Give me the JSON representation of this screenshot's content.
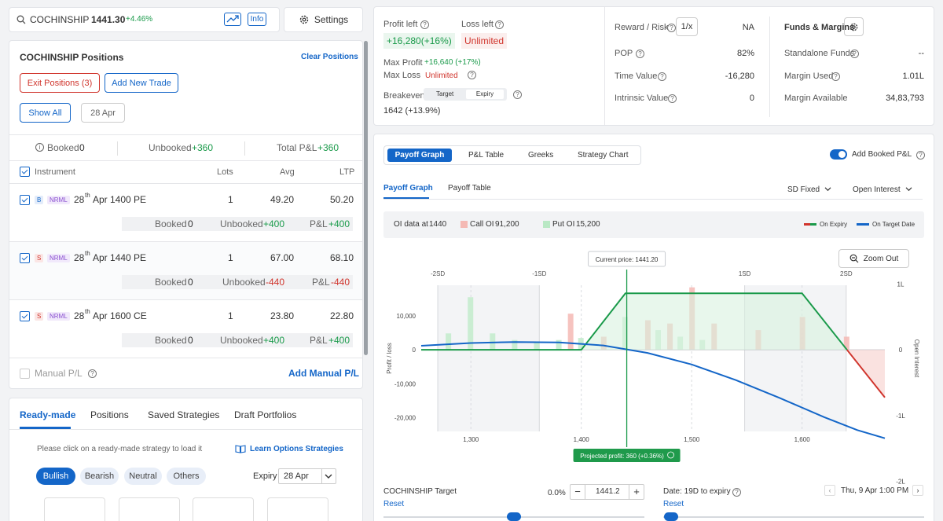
{
  "search": {
    "symbol": "COCHINSHIP",
    "price": "1441.30",
    "change": "+4.46%",
    "info": "Info"
  },
  "settings_label": "Settings",
  "positions": {
    "title": "COCHINSHIP Positions",
    "clear": "Clear Positions",
    "exit": "Exit Positions (3)",
    "add": "Add New Trade",
    "show_all": "Show All",
    "date": "28 Apr",
    "booked_label": "Booked",
    "booked_val": "0",
    "unbooked_label": "Unbooked",
    "unbooked_val": "+360",
    "total_label": "Total P&L",
    "total_val": "+360",
    "col_instrument": "Instrument",
    "col_lots": "Lots",
    "col_avg": "Avg",
    "col_ltp": "LTP",
    "rows": [
      {
        "side": "B",
        "type": "NRML",
        "day": "28",
        "sup": "th",
        "name": "Apr 1400 PE",
        "lots": "1",
        "avg": "49.20",
        "ltp": "50.20",
        "booked": "0",
        "unbooked": "+400",
        "pnl": "+400"
      },
      {
        "side": "S",
        "type": "NRML",
        "day": "28",
        "sup": "th",
        "name": "Apr 1440 PE",
        "lots": "1",
        "avg": "67.00",
        "ltp": "68.10",
        "booked": "0",
        "unbooked": "-440",
        "pnl": "-440"
      },
      {
        "side": "S",
        "type": "NRML",
        "day": "28",
        "sup": "th",
        "name": "Apr 1600 CE",
        "lots": "1",
        "avg": "23.80",
        "ltp": "22.80",
        "booked": "0",
        "unbooked": "+400",
        "pnl": "+400"
      }
    ],
    "row_booked": "Booked",
    "row_unbooked": "Unbooked",
    "row_pnl": "P&L",
    "manual": "Manual P/L",
    "add_manual": "Add Manual P/L"
  },
  "strategies": {
    "tabs": [
      "Ready-made",
      "Positions",
      "Saved Strategies",
      "Draft Portfolios"
    ],
    "hint": "Please click on a ready-made strategy to load it",
    "learn": "Learn Options Strategies",
    "chips": [
      "Bullish",
      "Bearish",
      "Neutral",
      "Others"
    ],
    "expiry_label": "Expiry",
    "expiry_val": "28 Apr"
  },
  "summary": {
    "profit_left_label": "Profit left",
    "profit_left": "+16,280(+16%)",
    "loss_left_label": "Loss left",
    "loss_left": "Unlimited",
    "max_profit_label": "Max Profit",
    "max_profit": "+16,640 (+17%)",
    "max_loss_label": "Max Loss",
    "max_loss": "Unlimited",
    "breakeven_label": "Breakeven",
    "be_target": "Target",
    "be_expiry": "Expiry",
    "breakeven": "1642 (+13.9%)",
    "rr_label": "Reward / Risk",
    "rr_btn": "1/x",
    "rr_val": "NA",
    "pop_label": "POP",
    "pop_val": "82%",
    "tv_label": "Time Value",
    "tv_val": "-16,280",
    "iv_label": "Intrinsic Value",
    "iv_val": "0",
    "funds_title": "Funds & Margins",
    "standalone_label": "Standalone Funds",
    "standalone_val": "--",
    "margin_used_label": "Margin Used",
    "margin_used_val": "1.01L",
    "margin_avail_label": "Margin Available",
    "margin_avail_val": "34,83,793"
  },
  "graph": {
    "tabs": [
      "Payoff Graph",
      "P&L Table",
      "Greeks",
      "Strategy Chart"
    ],
    "add_booked": "Add Booked P&L",
    "subtabs": [
      "Payoff Graph",
      "Payoff Table"
    ],
    "sd": "SD Fixed",
    "oi": "Open Interest",
    "oi_label": "OI data at",
    "oi_strike": "1440",
    "call_oi_label": "Call OI",
    "call_oi": "91,200",
    "put_oi_label": "Put OI",
    "put_oi": "15,200",
    "legend_expiry": "On Expiry",
    "legend_target": "On Target Date",
    "zoom": "Zoom Out",
    "current_price": "Current price: 1441.20",
    "projected": "Projected profit: 360 (+0.36%)",
    "target_label": "COCHINSHIP Target",
    "target_pct": "0.0%",
    "target_val": "1441.2",
    "reset": "Reset",
    "date_label": "Date: 19D to expiry",
    "date_val": "Thu, 9 Apr 1:00 PM"
  },
  "chart_data": {
    "type": "line",
    "title": "Payoff Graph",
    "xlabel": "",
    "ylabel": "Profit / loss",
    "y2label": "Open Interest",
    "xlim": [
      1255,
      1675
    ],
    "ylim": [
      -24000,
      19000
    ],
    "x_ticks": [
      1300,
      1400,
      1500,
      1600
    ],
    "x_tick_labels": [
      "1,300",
      "1,400",
      "1,500",
      "1,600"
    ],
    "y_ticks": [
      10000,
      0,
      -10000,
      -20000
    ],
    "y_tick_labels": [
      "10,000",
      "0",
      "-10,000",
      "-20,000"
    ],
    "y2_ticks": [
      1,
      0,
      -1,
      -2
    ],
    "y2_tick_labels": [
      "1L",
      "0",
      "-1L",
      "-2L"
    ],
    "sd_levels": [
      {
        "label": "-2SD",
        "x": 1270
      },
      {
        "label": "-1SD",
        "x": 1362
      },
      {
        "label": "1SD",
        "x": 1548
      },
      {
        "label": "2SD",
        "x": 1640
      }
    ],
    "current_price": 1441.2,
    "series": [
      {
        "name": "On Expiry",
        "x": [
          1255,
          1400,
          1440,
          1600,
          1675
        ],
        "y": [
          0,
          0,
          16640,
          16640,
          -14000
        ]
      },
      {
        "name": "On Target Date",
        "x": [
          1255,
          1300,
          1340,
          1380,
          1420,
          1460,
          1500,
          1540,
          1580,
          1620,
          1650,
          1675
        ],
        "y": [
          1200,
          2000,
          2300,
          2200,
          1300,
          -900,
          -4300,
          -8900,
          -14200,
          -19800,
          -23600,
          -26000
        ]
      }
    ],
    "oi_bars": {
      "call": [
        {
          "strike": 1390,
          "oi": 0.55
        },
        {
          "strike": 1420,
          "oi": 0.2
        },
        {
          "strike": 1460,
          "oi": 0.45
        },
        {
          "strike": 1480,
          "oi": 0.4
        },
        {
          "strike": 1500,
          "oi": 0.95
        },
        {
          "strike": 1520,
          "oi": 0.4
        },
        {
          "strike": 1560,
          "oi": 0.3
        },
        {
          "strike": 1600,
          "oi": 0.5
        },
        {
          "strike": 1640,
          "oi": 0.2
        }
      ],
      "put": [
        {
          "strike": 1280,
          "oi": 0.25
        },
        {
          "strike": 1300,
          "oi": 0.8
        },
        {
          "strike": 1320,
          "oi": 0.25
        },
        {
          "strike": 1340,
          "oi": 0.15
        },
        {
          "strike": 1360,
          "oi": 0.12
        },
        {
          "strike": 1380,
          "oi": 0.15
        },
        {
          "strike": 1400,
          "oi": 0.18
        },
        {
          "strike": 1440,
          "oi": 0.5
        },
        {
          "strike": 1470,
          "oi": 0.3
        },
        {
          "strike": 1490,
          "oi": 0.2
        },
        {
          "strike": 1510,
          "oi": 0.15
        }
      ]
    }
  }
}
